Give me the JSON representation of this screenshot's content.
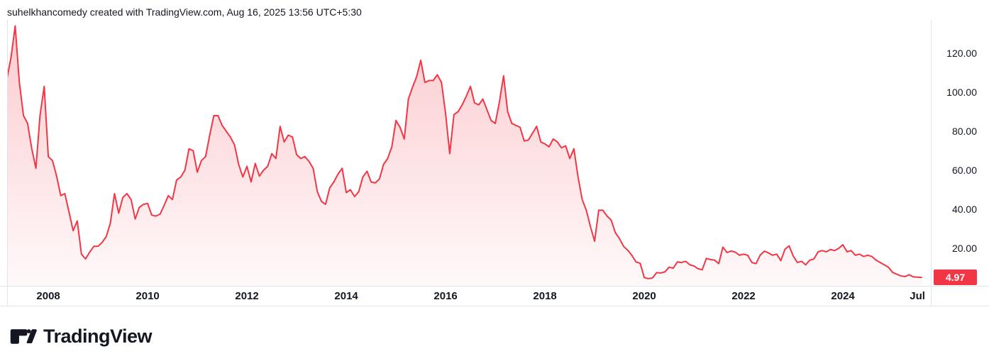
{
  "header": {
    "watermark": "suhelkhancomedy created with TradingView.com, Aug 16, 2025 13:56 UTC+5:30"
  },
  "chart_data": {
    "type": "area",
    "title": "",
    "xlabel": "",
    "ylabel": "",
    "interval": "monthly",
    "x_start": "2007-02",
    "x_end": "2025-08",
    "grid": false,
    "legend_position": "none",
    "line_color": "#F23645",
    "fill_color": "#F23645",
    "fill_opacity_top": 0.26,
    "fill_opacity_bottom": 0.03,
    "ylim": [
      0.73,
      137.1
    ],
    "xlim": [
      2007.17,
      2025.77
    ],
    "last_price": "4.97",
    "last_price_value": 4.97,
    "values": [
      111,
      107,
      118,
      134,
      105,
      88,
      84,
      71,
      61,
      88,
      103,
      67,
      65,
      57,
      47,
      48,
      38.5,
      29,
      34,
      17,
      14.5,
      18,
      21,
      21,
      23,
      26,
      33,
      48,
      38,
      46,
      48,
      45,
      35,
      41,
      42.5,
      43,
      37,
      36.5,
      37.5,
      42,
      47,
      45,
      55,
      56.5,
      60,
      71,
      70,
      59,
      65,
      67,
      78,
      88,
      88,
      83,
      80,
      77,
      73,
      63,
      56.5,
      62,
      54,
      63.5,
      57,
      60,
      62,
      68.5,
      66,
      82.5,
      74.5,
      78,
      77,
      68,
      66,
      67,
      64.5,
      61,
      49,
      44,
      42.5,
      51,
      54,
      58,
      61,
      48.5,
      50,
      46.5,
      49,
      56.5,
      59.5,
      54,
      53.5,
      55.5,
      63,
      66,
      72,
      85.5,
      82,
      76,
      96.5,
      102.5,
      108,
      116.4,
      105,
      106,
      106,
      109,
      105,
      89,
      68.5,
      88.5,
      90,
      93.5,
      98,
      103,
      94.5,
      93.5,
      96.5,
      91,
      85.5,
      84,
      95,
      108.4,
      90,
      84,
      83,
      82,
      75,
      75.5,
      79,
      82.5,
      74.5,
      73.5,
      72,
      76,
      74.5,
      71.5,
      72.5,
      66,
      71,
      56.5,
      45,
      39.5,
      31,
      23.6,
      39.5,
      39.5,
      36.5,
      34.5,
      28,
      25,
      21,
      19,
      16.4,
      13,
      12.3,
      5,
      4.4,
      4.8,
      7.5,
      7.3,
      7.9,
      10.3,
      9.8,
      13,
      12.7,
      13.3,
      11.5,
      10.9,
      9.5,
      9,
      14.8,
      14.2,
      13.9,
      12.1,
      20.6,
      17.8,
      18.6,
      18,
      16.4,
      17,
      16.4,
      12.7,
      12.1,
      16.4,
      18.5,
      17.6,
      16.4,
      17,
      13.6,
      19.5,
      21.2,
      16,
      12.7,
      13.3,
      11.5,
      13.9,
      14.5,
      18.2,
      18.8,
      18.2,
      19.4,
      18.8,
      20,
      21.8,
      18.2,
      18.8,
      16.4,
      17,
      15.8,
      16.4,
      15.8,
      13.9,
      12.7,
      11.5,
      10.3,
      7.6,
      6.7,
      5.8,
      5.5,
      6.4,
      5.3,
      5.2,
      4.97
    ],
    "y_ticks": [
      {
        "label": "120.00",
        "value": 120
      },
      {
        "label": "100.00",
        "value": 100
      },
      {
        "label": "80.00",
        "value": 80
      },
      {
        "label": "60.00",
        "value": 60
      },
      {
        "label": "40.00",
        "value": 40
      },
      {
        "label": "20.00",
        "value": 20
      }
    ],
    "x_ticks": [
      {
        "label": "2008",
        "t": 2008
      },
      {
        "label": "2010",
        "t": 2010
      },
      {
        "label": "2012",
        "t": 2012
      },
      {
        "label": "2014",
        "t": 2014
      },
      {
        "label": "2016",
        "t": 2016
      },
      {
        "label": "2018",
        "t": 2018
      },
      {
        "label": "2020",
        "t": 2020
      },
      {
        "label": "2022",
        "t": 2022
      },
      {
        "label": "2024",
        "t": 2024
      },
      {
        "label": "Jul",
        "t": 2025.5
      }
    ]
  },
  "footer": {
    "brand": "TradingView"
  },
  "colors": {
    "accent_red": "#F23645",
    "text": "#131722",
    "border": "#e0e3eb",
    "badge_text": "#ffffff",
    "background": "#ffffff"
  }
}
